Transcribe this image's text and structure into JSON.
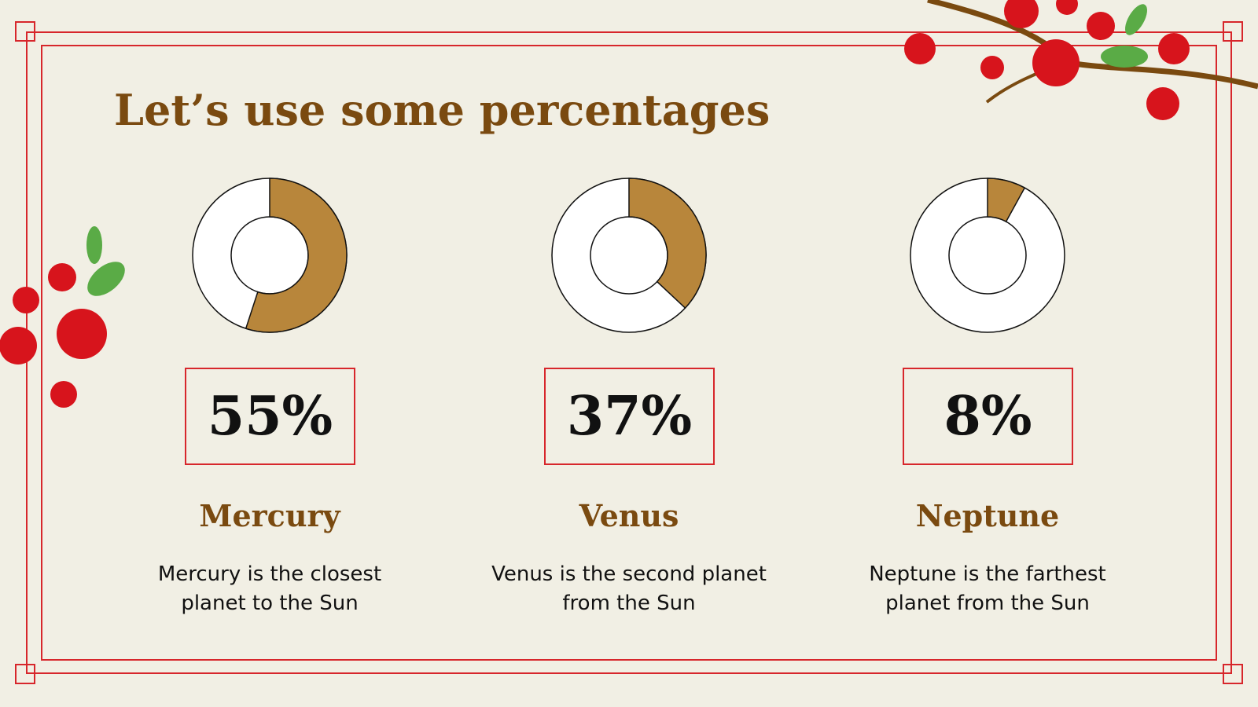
{
  "title": "Let’s use some percentages",
  "chart_data": [
    {
      "type": "donut",
      "title": "Mercury",
      "values": [
        55
      ],
      "value_labels": [
        "55%"
      ],
      "color": "#b8863b",
      "description": "Mercury is the closest planet to the Sun"
    },
    {
      "type": "donut",
      "title": "Venus",
      "values": [
        37
      ],
      "value_labels": [
        "37%"
      ],
      "color": "#b8863b",
      "description": "Venus is the second planet from the Sun"
    },
    {
      "type": "donut",
      "title": "Neptune",
      "values": [
        8
      ],
      "value_labels": [
        "8%"
      ],
      "color": "#b8863b",
      "description": "Neptune is the farthest planet from the Sun"
    }
  ]
}
